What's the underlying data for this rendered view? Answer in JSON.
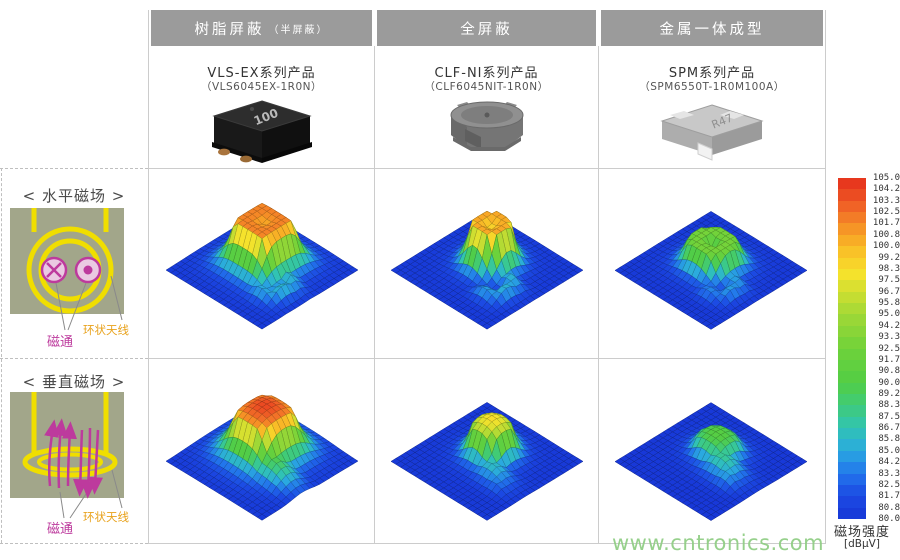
{
  "columns": [
    {
      "header": "树脂屏蔽",
      "header_note": "（半屏蔽）",
      "series": "VLS-EX系列产品",
      "part": "（VLS6045EX-1R0N）",
      "marking": "100",
      "product_icon": "inductor-semi-shielded-black"
    },
    {
      "header": "全屏蔽",
      "header_note": "",
      "series": "CLF-NI系列产品",
      "part": "（CLF6045NIT-1R0N）",
      "marking": "",
      "product_icon": "inductor-fully-shielded-round"
    },
    {
      "header": "金属一体成型",
      "header_note": "",
      "series": "SPM系列产品",
      "part": "（SPM6550T-1R0M100A）",
      "marking": "R47",
      "product_icon": "inductor-metal-molded"
    }
  ],
  "rows": [
    {
      "label": "< 水平磁场 >",
      "flux_label": "磁通",
      "antenna_label": "环状天线",
      "flux_color": "#bd3a9d",
      "antenna_color": "#e8a21c",
      "diagram": "loop-antenna-top-view"
    },
    {
      "label": "< 垂直磁场 >",
      "flux_label": "磁通",
      "antenna_label": "环状天线",
      "flux_color": "#bd3a9d",
      "antenna_color": "#e8a21c",
      "diagram": "loop-antenna-side-view"
    }
  ],
  "colorbar": {
    "title": "磁场强度",
    "unit": "[dBμV]",
    "max": 105.0,
    "min": 80.0,
    "ticks": [
      "105.0",
      "104.2",
      "103.3",
      "102.5",
      "101.7",
      "100.8",
      "100.0",
      "99.2",
      "98.3",
      "97.5",
      "96.7",
      "95.8",
      "95.0",
      "94.2",
      "93.3",
      "92.5",
      "91.7",
      "90.8",
      "90.0",
      "89.2",
      "88.3",
      "87.5",
      "86.7",
      "85.8",
      "85.0",
      "84.2",
      "83.3",
      "82.5",
      "81.7",
      "80.8",
      "80.0"
    ],
    "stops": [
      [
        80,
        "#1736d6"
      ],
      [
        81.7,
        "#1c4ae3"
      ],
      [
        83.3,
        "#2274ec"
      ],
      [
        85,
        "#2aa9e0"
      ],
      [
        86.7,
        "#31c4b2"
      ],
      [
        88.3,
        "#3fcb7a"
      ],
      [
        90,
        "#52cd45"
      ],
      [
        92.5,
        "#6fd23a"
      ],
      [
        95,
        "#a2d836"
      ],
      [
        97,
        "#d9e030"
      ],
      [
        98,
        "#f6e22c"
      ],
      [
        99.5,
        "#f9c428"
      ],
      [
        101,
        "#f79d25"
      ],
      [
        102.5,
        "#f26f28"
      ],
      [
        104,
        "#ea4521"
      ],
      [
        105,
        "#e52e1c"
      ]
    ]
  },
  "watermark": "www.cntronics.com",
  "chart_data": {
    "type": "surface",
    "unit": "dBμV",
    "zlim": [
      80,
      105
    ],
    "legend_title": "磁场强度 [dBμV]",
    "plots": [
      {
        "field": "水平磁场",
        "product": "VLS-EX系列产品 (VLS6045EX-1R0N)",
        "peak_dBuV": 102.5,
        "base_dBuV": 80.4,
        "shape": "square-plateau, orange top, green halo, hook tail right",
        "params": {
          "cx": 0.46,
          "cy": 0.44,
          "rx": 0.18,
          "ry": 0.18,
          "exp": 4,
          "peak": 102.5,
          "rim_drop": 1,
          "dip": 3,
          "dip_r": 0.8,
          "decay": 1.15,
          "base": 80.4,
          "blobs": [
            {
              "x": 0.78,
              "y": 0.5,
              "sx": 0.09,
              "sy": 0.05,
              "level": 87
            },
            {
              "x": 0.84,
              "y": 0.63,
              "sx": 0.05,
              "sy": 0.1,
              "level": 87
            },
            {
              "x": 0.74,
              "y": 0.74,
              "sx": 0.1,
              "sy": 0.05,
              "level": 86
            }
          ]
        }
      },
      {
        "field": "水平磁场",
        "product": "CLF-NI系列产品 (CLF6045NIT-1R0N)",
        "peak_dBuV": 101.0,
        "base_dBuV": 80.4,
        "shape": "round plateau, yellow top with dip, green halo, hook tail right",
        "params": {
          "cx": 0.47,
          "cy": 0.43,
          "rx": 0.15,
          "ry": 0.15,
          "exp": 2,
          "peak": 101,
          "rim_drop": 0.5,
          "dip": 5,
          "dip_r": 0.7,
          "decay": 1.25,
          "base": 80.4,
          "blobs": [
            {
              "x": 0.77,
              "y": 0.52,
              "sx": 0.08,
              "sy": 0.05,
              "level": 86.5
            },
            {
              "x": 0.83,
              "y": 0.64,
              "sx": 0.05,
              "sy": 0.09,
              "level": 86.5
            },
            {
              "x": 0.73,
              "y": 0.74,
              "sx": 0.09,
              "sy": 0.05,
              "level": 85.5
            }
          ]
        }
      },
      {
        "field": "水平磁场",
        "product": "SPM系列产品 (SPM6550T-1R0M100A)",
        "peak_dBuV": 93.0,
        "base_dBuV": 80.3,
        "shape": "low green plateau with blue dip at center, cyan halo",
        "params": {
          "cx": 0.47,
          "cy": 0.45,
          "rx": 0.18,
          "ry": 0.17,
          "exp": 2.5,
          "peak": 93,
          "rim_drop": 0.5,
          "dip": 8.5,
          "dip_r": 0.45,
          "decay": 1.35,
          "base": 80.3,
          "blobs": [
            {
              "x": 0.78,
              "y": 0.52,
              "sx": 0.08,
              "sy": 0.05,
              "level": 85.5
            },
            {
              "x": 0.83,
              "y": 0.63,
              "sx": 0.05,
              "sy": 0.08,
              "level": 85.5
            },
            {
              "x": 0.72,
              "y": 0.73,
              "sx": 0.09,
              "sy": 0.05,
              "level": 84.5
            }
          ]
        }
      },
      {
        "field": "垂直磁场",
        "product": "VLS-EX系列产品 (VLS6045EX-1R0N)",
        "peak_dBuV": 104.0,
        "base_dBuV": 80.3,
        "shape": "large plateau with red center, orange rim, wide green skirt to lower right",
        "params": {
          "cx": 0.45,
          "cy": 0.42,
          "rx": 0.19,
          "ry": 0.19,
          "exp": 3,
          "peak": 104,
          "rim_drop": 3.5,
          "dip": 0,
          "dip_r": 0.5,
          "decay": 1.0,
          "base": 80.3,
          "blobs": [
            {
              "x": 0.7,
              "y": 0.58,
              "sx": 0.16,
              "sy": 0.1,
              "level": 90
            },
            {
              "x": 0.82,
              "y": 0.66,
              "sx": 0.08,
              "sy": 0.06,
              "level": 85
            }
          ]
        }
      },
      {
        "field": "垂直磁场",
        "product": "CLF-NI系列产品 (CLF6045NIT-1R0N)",
        "peak_dBuV": 98.5,
        "base_dBuV": 80.3,
        "shape": "round plateau yellow-green top, green tail to lower right, faint cyan arc above",
        "params": {
          "cx": 0.47,
          "cy": 0.42,
          "rx": 0.15,
          "ry": 0.15,
          "exp": 2,
          "peak": 98.5,
          "rim_drop": 4,
          "dip": 0,
          "dip_r": 0.5,
          "decay": 1.2,
          "base": 80.3,
          "blobs": [
            {
              "x": 0.66,
              "y": 0.6,
              "sx": 0.13,
              "sy": 0.08,
              "level": 86.5
            },
            {
              "x": 0.78,
              "y": 0.68,
              "sx": 0.08,
              "sy": 0.05,
              "level": 84
            },
            {
              "x": 0.44,
              "y": 0.17,
              "sx": 0.1,
              "sy": 0.04,
              "level": 83.5
            }
          ]
        }
      },
      {
        "field": "垂直磁场",
        "product": "SPM系列产品 (SPM6550T-1R0M100A)",
        "peak_dBuV": 90.5,
        "base_dBuV": 80.2,
        "shape": "nearly flat, low green blob extending right",
        "params": {
          "cx": 0.47,
          "cy": 0.4,
          "rx": 0.16,
          "ry": 0.14,
          "exp": 2,
          "peak": 90.5,
          "rim_drop": 2,
          "dip": 0,
          "dip_r": 0.5,
          "decay": 1.2,
          "base": 80.2,
          "blobs": [
            {
              "x": 0.64,
              "y": 0.52,
              "sx": 0.14,
              "sy": 0.09,
              "level": 88
            },
            {
              "x": 0.76,
              "y": 0.6,
              "sx": 0.09,
              "sy": 0.06,
              "level": 85.5
            }
          ]
        }
      }
    ]
  }
}
